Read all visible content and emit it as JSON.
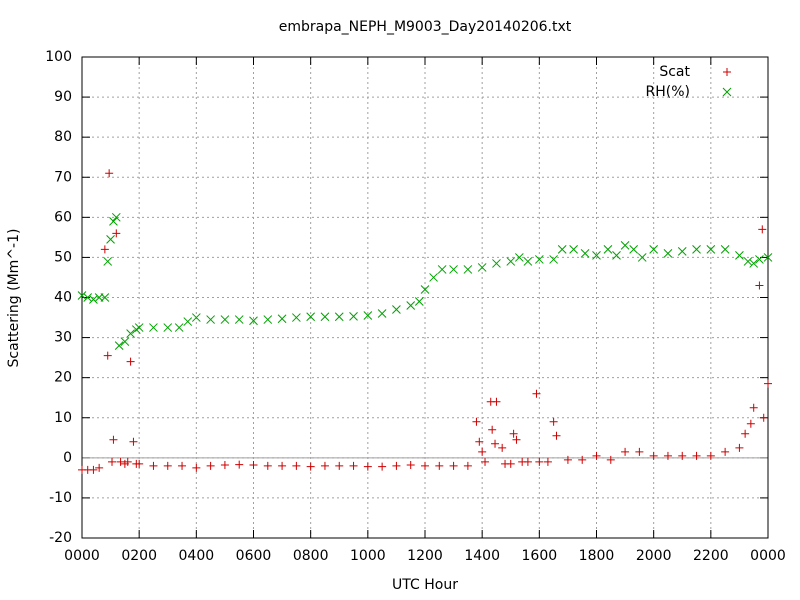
{
  "chart_data": {
    "type": "scatter",
    "title": "embrapa_NEPH_M9003_Day20140206.txt",
    "x_label": "UTC Hour",
    "y_label": "Scattering (Mm^-1)",
    "xlim": [
      0,
      24
    ],
    "ylim": [
      -20,
      100
    ],
    "xticks": [
      {
        "value": 0,
        "label": "0000"
      },
      {
        "value": 2,
        "label": "0200"
      },
      {
        "value": 4,
        "label": "0400"
      },
      {
        "value": 6,
        "label": "0600"
      },
      {
        "value": 8,
        "label": "0800"
      },
      {
        "value": 10,
        "label": "1000"
      },
      {
        "value": 12,
        "label": "1200"
      },
      {
        "value": 14,
        "label": "1400"
      },
      {
        "value": 16,
        "label": "1600"
      },
      {
        "value": 18,
        "label": "1800"
      },
      {
        "value": 20,
        "label": "2000"
      },
      {
        "value": 22,
        "label": "2200"
      },
      {
        "value": 24,
        "label": "0000"
      }
    ],
    "yticks": [
      -20,
      -10,
      0,
      10,
      20,
      30,
      40,
      50,
      60,
      70,
      80,
      90,
      100
    ],
    "grid": true,
    "zero_axis": true,
    "legend": "top-right",
    "series": [
      {
        "name": "Scat",
        "color": "#cc0000",
        "marker": "plus",
        "x": [
          0.0,
          0.2,
          0.4,
          0.6,
          0.8,
          0.9,
          0.95,
          1.05,
          1.1,
          1.2,
          1.35,
          1.5,
          1.6,
          1.7,
          1.8,
          1.9,
          2.0,
          2.5,
          3.0,
          3.5,
          4.0,
          4.5,
          5.0,
          5.5,
          6.0,
          6.5,
          7.0,
          7.5,
          8.0,
          8.5,
          9.0,
          9.5,
          10.0,
          10.5,
          11.0,
          11.5,
          12.0,
          12.5,
          13.0,
          13.5,
          13.8,
          13.9,
          14.0,
          14.1,
          14.3,
          14.35,
          14.45,
          14.5,
          14.7,
          14.8,
          15.0,
          15.1,
          15.2,
          15.4,
          15.6,
          15.9,
          16.0,
          16.3,
          16.5,
          16.6,
          17.0,
          17.5,
          18.0,
          18.5,
          19.0,
          19.5,
          20.0,
          20.5,
          21.0,
          21.5,
          22.0,
          22.5,
          23.0,
          23.2,
          23.4,
          23.5,
          23.7,
          23.8,
          23.85,
          24.0
        ],
        "values": [
          -3,
          -3,
          -3,
          -2.5,
          52,
          25.5,
          71,
          -1,
          4.5,
          56,
          -1,
          -1.5,
          -1,
          24,
          4,
          -1.5,
          -1.5,
          -2,
          -2,
          -2,
          -2.5,
          -2,
          -1.8,
          -1.7,
          -1.8,
          -2,
          -2,
          -2,
          -2.2,
          -2,
          -2,
          -2,
          -2.2,
          -2.2,
          -2,
          -1.8,
          -2,
          -2,
          -2,
          -2,
          9,
          4,
          1.5,
          -1,
          14,
          7,
          3.5,
          14,
          2.5,
          -1.5,
          -1.5,
          6,
          4.5,
          -1,
          -1,
          16,
          -1,
          -1,
          9,
          5.5,
          -0.5,
          -0.5,
          0.5,
          -0.5,
          1.5,
          1.5,
          0.5,
          0.5,
          0.5,
          0.5,
          0.5,
          1.5,
          2.5,
          6,
          8.5,
          12.5,
          43,
          57,
          10,
          18.5
        ]
      },
      {
        "name": "RH(%)",
        "color": "#00a000",
        "marker": "cross",
        "x": [
          0.0,
          0.2,
          0.4,
          0.6,
          0.8,
          0.9,
          1.0,
          1.1,
          1.2,
          1.3,
          1.5,
          1.7,
          1.9,
          2.0,
          2.5,
          3.0,
          3.4,
          3.7,
          4.0,
          4.5,
          5.0,
          5.5,
          6.0,
          6.5,
          7.0,
          7.5,
          8.0,
          8.5,
          9.0,
          9.5,
          10.0,
          10.5,
          11.0,
          11.5,
          11.8,
          12.0,
          12.3,
          12.6,
          13.0,
          13.5,
          14.0,
          14.5,
          15.0,
          15.3,
          15.6,
          16.0,
          16.5,
          16.8,
          17.2,
          17.6,
          18.0,
          18.4,
          18.7,
          19.0,
          19.3,
          19.6,
          20.0,
          20.5,
          21.0,
          21.5,
          22.0,
          22.5,
          23.0,
          23.3,
          23.5,
          23.7,
          24.0
        ],
        "values": [
          40.5,
          40,
          39.5,
          40,
          40,
          49,
          54.5,
          59,
          60,
          28,
          29,
          31,
          32,
          32.5,
          32.5,
          32.5,
          32.5,
          34,
          35,
          34.5,
          34.5,
          34.5,
          34.2,
          34.5,
          34.7,
          35,
          35.2,
          35.2,
          35.2,
          35.3,
          35.5,
          36,
          37,
          38,
          39,
          42,
          45,
          47,
          47,
          47,
          47.5,
          48.5,
          49,
          50,
          49,
          49.5,
          49.5,
          52,
          52,
          51,
          50.5,
          52,
          50.5,
          53,
          52,
          50,
          52,
          51,
          51.5,
          52,
          52,
          52,
          50.5,
          49,
          48.5,
          49.5,
          50
        ]
      }
    ]
  }
}
